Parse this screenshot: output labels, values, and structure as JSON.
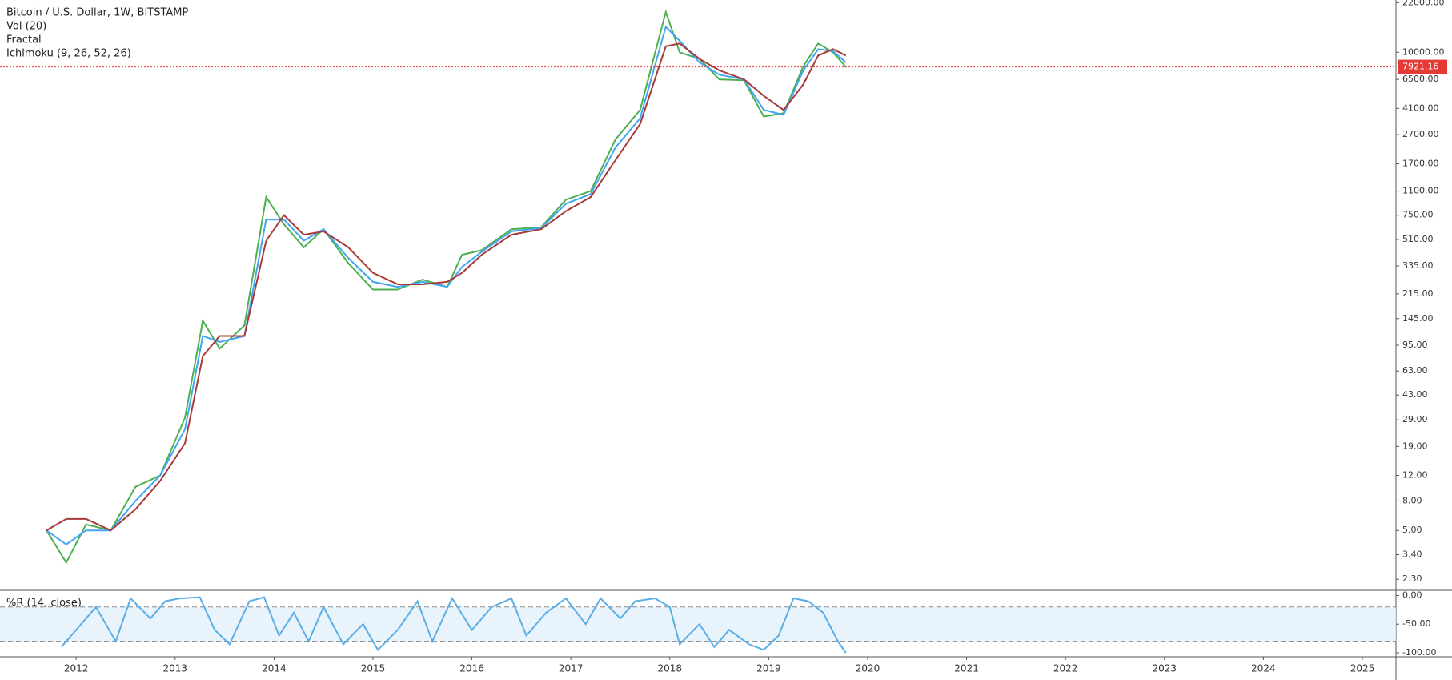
{
  "chart_data": [
    {
      "type": "line",
      "title": "Bitcoin / U.S. Dollar, 1W, BITSTAMP",
      "indicators": [
        "Vol (20)",
        "Fractal",
        "Ichimoku (9, 26, 52, 26)"
      ],
      "log_scale": true,
      "x": [
        2011.7,
        2011.9,
        2012.1,
        2012.35,
        2012.6,
        2012.85,
        2013.1,
        2013.28,
        2013.45,
        2013.7,
        2013.92,
        2014.1,
        2014.3,
        2014.5,
        2014.75,
        2015.0,
        2015.25,
        2015.5,
        2015.75,
        2015.9,
        2016.1,
        2016.4,
        2016.7,
        2016.95,
        2017.2,
        2017.45,
        2017.7,
        2017.96,
        2018.1,
        2018.3,
        2018.5,
        2018.75,
        2018.95,
        2019.15,
        2019.35,
        2019.5,
        2019.65,
        2019.78
      ],
      "series": [
        {
          "color": "#4caf50",
          "values": [
            5,
            3,
            5.5,
            5,
            10,
            12,
            30,
            140,
            90,
            130,
            1000,
            650,
            450,
            600,
            350,
            230,
            230,
            270,
            240,
            400,
            430,
            600,
            620,
            960,
            1100,
            2500,
            4000,
            19000,
            10000,
            9000,
            6500,
            6400,
            3600,
            3800,
            8000,
            11500,
            10000,
            7921.16
          ]
        },
        {
          "color": "#42a5f5",
          "values": [
            5,
            4,
            5,
            5,
            8,
            12,
            25,
            110,
            100,
            110,
            700,
            700,
            500,
            600,
            380,
            260,
            240,
            260,
            240,
            330,
            420,
            580,
            610,
            900,
            1050,
            2200,
            3500,
            15000,
            12000,
            8500,
            7000,
            6500,
            4000,
            3700,
            7500,
            10500,
            10200,
            8500
          ]
        },
        {
          "color": "#a83a3a",
          "values": [
            5,
            6,
            6,
            5,
            7,
            11,
            20,
            80,
            110,
            110,
            500,
            750,
            550,
            580,
            450,
            300,
            250,
            250,
            260,
            300,
            400,
            550,
            600,
            800,
            1000,
            1800,
            3200,
            11000,
            11500,
            9000,
            7500,
            6500,
            5000,
            4000,
            6000,
            9500,
            10500,
            9500
          ]
        }
      ],
      "last_price": {
        "value": 7921.16,
        "label": "7921.16",
        "color": "#e53935"
      },
      "xlim": [
        2011.23,
        2025.34
      ],
      "ylim": [
        1.93,
        22960
      ],
      "yticks": [
        {
          "value": 22000,
          "label": "22000.00"
        },
        {
          "value": 10000,
          "label": "10000.00"
        },
        {
          "value": 6500,
          "label": "6500.00"
        },
        {
          "value": 4100,
          "label": "4100.00"
        },
        {
          "value": 2700,
          "label": "2700.00"
        },
        {
          "value": 1700,
          "label": "1700.00"
        },
        {
          "value": 1100,
          "label": "1100.00"
        },
        {
          "value": 750,
          "label": "750.00"
        },
        {
          "value": 510,
          "label": "510.00"
        },
        {
          "value": 335,
          "label": "335.00"
        },
        {
          "value": 215,
          "label": "215.00"
        },
        {
          "value": 145,
          "label": "145.00"
        },
        {
          "value": 95,
          "label": "95.00"
        },
        {
          "value": 63,
          "label": "63.00"
        },
        {
          "value": 43,
          "label": "43.00"
        },
        {
          "value": 29,
          "label": "29.00"
        },
        {
          "value": 19,
          "label": "19.00"
        },
        {
          "value": 12,
          "label": "12.00"
        },
        {
          "value": 8,
          "label": "8.00"
        },
        {
          "value": 5,
          "label": "5.00"
        },
        {
          "value": 3.4,
          "label": "3.40"
        },
        {
          "value": 2.3,
          "label": "2.30"
        }
      ]
    },
    {
      "type": "line",
      "title": "%R (14, close)",
      "x": [
        2011.85,
        2012.0,
        2012.2,
        2012.4,
        2012.55,
        2012.75,
        2012.9,
        2013.05,
        2013.25,
        2013.4,
        2013.55,
        2013.75,
        2013.9,
        2014.05,
        2014.2,
        2014.35,
        2014.5,
        2014.7,
        2014.9,
        2015.05,
        2015.25,
        2015.45,
        2015.6,
        2015.8,
        2016.0,
        2016.2,
        2016.4,
        2016.55,
        2016.75,
        2016.95,
        2017.15,
        2017.3,
        2017.5,
        2017.65,
        2017.85,
        2018.0,
        2018.1,
        2018.3,
        2018.45,
        2018.6,
        2018.8,
        2018.95,
        2019.1,
        2019.25,
        2019.4,
        2019.55,
        2019.7,
        2019.78
      ],
      "values": [
        -90,
        -60,
        -20,
        -80,
        -5,
        -40,
        -10,
        -5,
        -3,
        -60,
        -85,
        -10,
        -3,
        -70,
        -30,
        -80,
        -20,
        -85,
        -50,
        -95,
        -60,
        -10,
        -80,
        -5,
        -60,
        -20,
        -5,
        -70,
        -30,
        -5,
        -50,
        -5,
        -40,
        -10,
        -5,
        -20,
        -85,
        -50,
        -90,
        -60,
        -85,
        -95,
        -70,
        -5,
        -10,
        -30,
        -80,
        -100
      ],
      "color": "#5aaee6",
      "band": [
        -80,
        -20
      ],
      "xlim": [
        2011.23,
        2025.34
      ],
      "ylim": [
        -107,
        9
      ],
      "yticks": [
        {
          "value": 0,
          "label": "0.00"
        },
        {
          "value": -50,
          "label": "-50.00"
        },
        {
          "value": -100,
          "label": "-100.00"
        }
      ],
      "xticks": [
        2012,
        2013,
        2014,
        2015,
        2016,
        2017,
        2018,
        2019,
        2020,
        2021,
        2022,
        2023,
        2024,
        2025
      ]
    }
  ]
}
